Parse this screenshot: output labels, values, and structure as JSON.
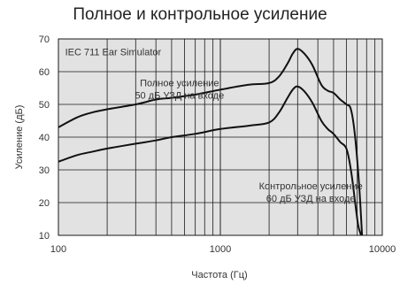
{
  "chart_data": {
    "type": "line",
    "title": "Полное и контрольное усиление",
    "xlabel": "Частота (Гц)",
    "ylabel": "Усиление (дБ)",
    "xscale": "log",
    "xlim": [
      100,
      10000
    ],
    "ylim": [
      10,
      70
    ],
    "grid": true,
    "xticks": [
      100,
      1000,
      10000
    ],
    "xtick_labels": [
      "100",
      "1000",
      "10000"
    ],
    "yticks": [
      10,
      20,
      30,
      40,
      50,
      60,
      70
    ],
    "ytick_labels": [
      "10",
      "20",
      "30",
      "40",
      "50",
      "60",
      "70"
    ],
    "annotations": [
      {
        "lines": [
          "IEC 711 Ear Simulator"
        ],
        "x": 110,
        "y": 65
      },
      {
        "lines": [
          "Полное усиление",
          "50 дБ УЗД на входе"
        ],
        "x": 280,
        "y": 55.5
      },
      {
        "lines": [
          "Контрольное усиление",
          "60 дБ УЗД на входе"
        ],
        "x": 1700,
        "y": 24
      }
    ],
    "series": [
      {
        "name": "Полное усиление",
        "x": [
          100,
          130,
          160,
          200,
          300,
          400,
          500,
          700,
          1000,
          1500,
          2000,
          2300,
          2600,
          2800,
          3000,
          3300,
          3700,
          4200,
          4600,
          5000,
          5500,
          6000,
          6400,
          6800,
          7200,
          7500
        ],
        "y": [
          43,
          46,
          47.5,
          48.5,
          50,
          51.5,
          52,
          53,
          54.5,
          56,
          56.5,
          58.5,
          62.5,
          65.5,
          67,
          65.5,
          62,
          56,
          54.2,
          53.5,
          51.5,
          50,
          48.5,
          40,
          25,
          10
        ]
      },
      {
        "name": "Контрольное усиление",
        "x": [
          100,
          130,
          160,
          200,
          300,
          400,
          500,
          700,
          1000,
          1500,
          2000,
          2300,
          2600,
          2800,
          3000,
          3300,
          3700,
          4200,
          4600,
          5000,
          5500,
          6000,
          6400,
          6800,
          7100,
          7400
        ],
        "y": [
          32.5,
          34.5,
          35.5,
          36.5,
          38,
          39,
          40,
          41,
          42.5,
          43.5,
          44.5,
          47.5,
          52,
          54.5,
          55.5,
          54,
          50.5,
          45,
          42.5,
          41,
          38.5,
          36.5,
          30,
          20,
          13,
          10
        ]
      }
    ]
  }
}
